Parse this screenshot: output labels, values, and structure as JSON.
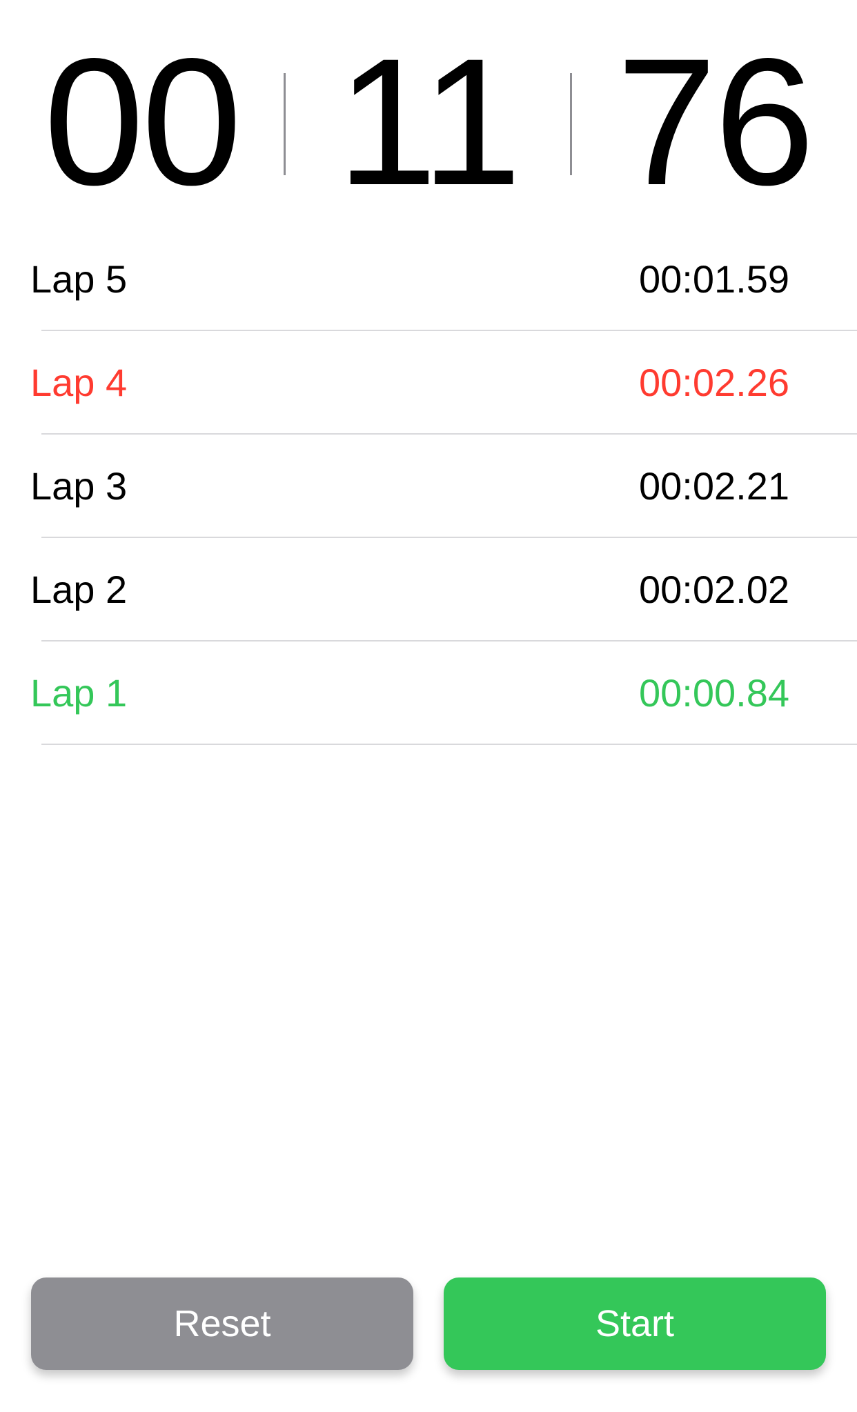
{
  "timer": {
    "minutes": "00",
    "seconds": "11",
    "hundredths": "76"
  },
  "laps": [
    {
      "label": "Lap 5",
      "time": "00:01.59",
      "status": "normal"
    },
    {
      "label": "Lap 4",
      "time": "00:02.26",
      "status": "worst"
    },
    {
      "label": "Lap 3",
      "time": "00:02.21",
      "status": "normal"
    },
    {
      "label": "Lap 2",
      "time": "00:02.02",
      "status": "normal"
    },
    {
      "label": "Lap 1",
      "time": "00:00.84",
      "status": "best"
    }
  ],
  "buttons": {
    "reset_label": "Reset",
    "start_label": "Start"
  },
  "colors": {
    "worst": "#ff3b30",
    "best": "#34c759",
    "reset_button": "#8e8e93",
    "start_button": "#34c759"
  }
}
